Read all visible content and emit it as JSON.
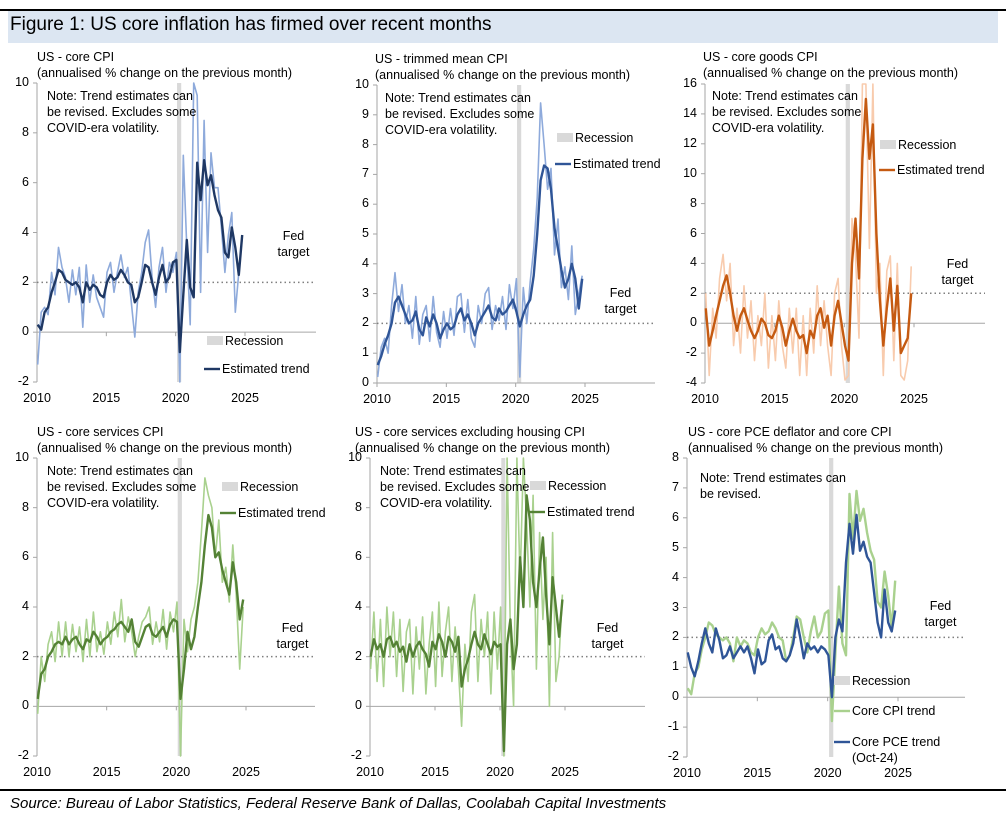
{
  "figure_title": "Figure 1: US core inflation has firmed over recent months",
  "source": "Source: Bureau of Labor Statistics, Federal Reserve Bank of Dallas, Coolabah Capital Investments",
  "colors": {
    "blue_raw": "#8eaadb",
    "blue_trend": "#1f3864",
    "trim_trend": "#2f5597",
    "orange_raw": "#f8cbad",
    "orange_trend": "#c55a11",
    "green_raw": "#a9d18e",
    "green_trend": "#548235",
    "pce_blue": "#2f5597",
    "recession": "#d9d9d9",
    "target": "#7f7f7f"
  },
  "chart_data": [
    {
      "type": "line",
      "title": "US - core CPI",
      "subtitle": "(annualised % change on the previous month)",
      "note": "Note: Trend estimates can be revised. Excludes some COVID-era volatility.",
      "ylim": [
        -2,
        10
      ],
      "yticks": [
        -2,
        0,
        2,
        4,
        6,
        8,
        10
      ],
      "xticks": [
        2010,
        2015,
        2020,
        2025
      ],
      "target": 2,
      "target_label": "Fed target",
      "recession": [
        2020.1,
        2020.4
      ],
      "legend": {
        "recession": "Recession",
        "entries": [
          "Estimated trend"
        ]
      },
      "start": "2010-Q1",
      "frequency": "quarterly",
      "series": [
        {
          "role": "raw",
          "color": "#8eaadb",
          "values": [
            -1.3,
            0.8,
            1.0,
            0.7,
            2.4,
            1.5,
            3.4,
            2.6,
            2.2,
            1.2,
            2.5,
            1.5,
            2.6,
            0.2,
            2.7,
            1.2,
            2.3,
            1.4,
            1.0,
            0.6,
            2.4,
            2.8,
            1.6,
            2.4,
            3.1,
            2.2,
            2.6,
            1.2,
            -0.2,
            1.6,
            2.4,
            3.6,
            4.1,
            2.2,
            1.0,
            2.6,
            3.4,
            1.6,
            2.8,
            2.4,
            3.2,
            -2.0,
            7.1,
            3.4,
            0.3,
            10.0,
            9.5,
            1.6,
            8.5,
            3.2,
            7.2,
            5.8,
            5.8,
            4.2,
            2.4,
            3.9,
            4.8,
            0.8,
            2.4,
            3.8
          ]
        },
        {
          "role": "trend",
          "name": "Estimated trend",
          "color": "#1f3864",
          "values": [
            0.3,
            0.1,
            0.8,
            1.0,
            1.6,
            2.0,
            2.5,
            2.4,
            2.1,
            2.0,
            1.9,
            2.0,
            1.8,
            1.2,
            2.0,
            1.7,
            1.9,
            1.8,
            1.5,
            1.4,
            2.0,
            2.3,
            2.1,
            2.2,
            2.5,
            2.3,
            2.0,
            1.9,
            1.2,
            1.4,
            2.0,
            2.7,
            2.6,
            2.0,
            1.5,
            2.2,
            2.7,
            2.0,
            2.2,
            2.8,
            2.9,
            -0.8,
            1.5,
            3.7,
            1.8,
            1.4,
            6.8,
            5.3,
            6.9,
            5.9,
            6.3,
            5.5,
            4.9,
            4.6,
            3.2,
            3.0,
            4.2,
            3.4,
            2.3,
            3.9
          ]
        }
      ]
    },
    {
      "type": "line",
      "title": "US - trimmed mean CPI",
      "subtitle": "(annualised % change on the previous month)",
      "note": "Note: Trend estimates can be revised. Excludes some COVID-era volatility.",
      "ylim": [
        0,
        10
      ],
      "yticks": [
        0,
        1,
        2,
        3,
        4,
        5,
        6,
        7,
        8,
        9,
        10
      ],
      "xticks": [
        2010,
        2015,
        2020,
        2025
      ],
      "target": 2,
      "target_label": "Fed target",
      "recession": [
        2020.1,
        2020.4
      ],
      "legend": {
        "recession": "Recession",
        "entries": [
          "Estimated trend"
        ]
      },
      "start": "2010-Q1",
      "frequency": "quarterly",
      "series": [
        {
          "role": "raw",
          "color": "#8eaadb",
          "values": [
            0.2,
            1.2,
            1.5,
            1.0,
            2.6,
            3.7,
            2.4,
            3.3,
            2.0,
            2.6,
            1.5,
            2.9,
            1.3,
            2.3,
            2.6,
            1.4,
            2.9,
            1.7,
            1.2,
            2.4,
            1.5,
            2.5,
            1.6,
            2.9,
            3.0,
            1.7,
            2.8,
            1.5,
            1.2,
            2.6,
            2.0,
            3.0,
            3.2,
            1.8,
            2.6,
            2.1,
            2.9,
            1.8,
            3.3,
            2.5,
            3.5,
            0.2,
            3.2,
            2.0,
            3.4,
            4.5,
            6.2,
            9.4,
            8.0,
            6.5,
            7.2,
            4.3,
            5.5,
            3.2,
            3.9,
            2.8,
            4.6,
            2.3,
            3.0,
            3.6
          ]
        },
        {
          "role": "trend",
          "name": "Estimated trend",
          "color": "#2f5597",
          "values": [
            0.6,
            0.9,
            1.3,
            1.6,
            2.0,
            2.7,
            2.9,
            2.6,
            2.3,
            2.0,
            2.1,
            2.4,
            1.8,
            1.6,
            2.2,
            1.9,
            2.3,
            2.0,
            1.5,
            1.8,
            2.0,
            1.8,
            1.9,
            2.3,
            2.5,
            2.1,
            2.3,
            2.0,
            1.6,
            2.0,
            2.2,
            2.4,
            2.6,
            2.2,
            2.1,
            2.5,
            2.3,
            2.4,
            2.6,
            2.8,
            2.4,
            1.9,
            2.3,
            2.6,
            2.8,
            3.6,
            5.0,
            6.8,
            7.3,
            7.2,
            6.5,
            5.2,
            4.5,
            3.8,
            3.2,
            3.5,
            4.0,
            3.5,
            2.5,
            3.5
          ]
        }
      ]
    },
    {
      "type": "line",
      "title": "US - core goods CPI",
      "subtitle": "(annualised % change on the previous month)",
      "note": "Note: Trend estimates can be revised. Excludes some COVID-era volatility.",
      "ylim": [
        -4,
        16
      ],
      "yticks": [
        -4,
        -2,
        0,
        2,
        4,
        6,
        8,
        10,
        12,
        14,
        16
      ],
      "xticks": [
        2010,
        2015,
        2020,
        2025
      ],
      "target": 2,
      "target_label": "Fed target",
      "recession": [
        2020.1,
        2020.4
      ],
      "legend": {
        "recession": "Recession",
        "entries": [
          "Estimated trend"
        ]
      },
      "start": "2010-Q1",
      "frequency": "quarterly",
      "series": [
        {
          "role": "raw",
          "color": "#f8cbad",
          "values": [
            2.0,
            -3.5,
            1.0,
            -1.0,
            3.0,
            4.6,
            1.5,
            4.0,
            -1.5,
            1.0,
            -2.0,
            2.5,
            -1.0,
            1.5,
            -2.5,
            0.5,
            -1.5,
            2.0,
            -3.0,
            0.5,
            -2.5,
            1.5,
            -1.5,
            -3.0,
            1.0,
            -2.0,
            1.0,
            -3.5,
            0.5,
            -3.5,
            1.0,
            -2.0,
            2.5,
            -1.5,
            1.5,
            -1.5,
            -3.5,
            2.0,
            3.0,
            -1.5,
            -3.8,
            -3.5,
            7.0,
            4.5,
            -1.0,
            16.0,
            16.0,
            5.0,
            16.0,
            2.0,
            4.0,
            -3.5,
            3.5,
            4.5,
            -2.5,
            4.0,
            -3.5,
            -3.8,
            -2.5,
            3.8
          ]
        },
        {
          "role": "trend",
          "name": "Estimated trend",
          "color": "#c55a11",
          "values": [
            1.0,
            -1.5,
            -0.5,
            0.5,
            1.5,
            2.5,
            3.2,
            2.0,
            0.5,
            -0.5,
            0.5,
            1.0,
            0.2,
            -0.5,
            -1.0,
            -0.5,
            0.3,
            0.0,
            -0.8,
            -1.0,
            -0.5,
            0.5,
            -0.3,
            -1.5,
            -0.5,
            0.3,
            -0.5,
            -1.0,
            -0.8,
            -2.0,
            -0.5,
            -1.0,
            0.5,
            1.0,
            -0.3,
            0.5,
            -1.5,
            0.5,
            1.5,
            0.0,
            -1.5,
            -2.5,
            4.0,
            7.0,
            3.0,
            11.0,
            15.0,
            11.0,
            13.3,
            6.0,
            1.5,
            -1.5,
            1.0,
            3.0,
            -0.5,
            2.5,
            -2.0,
            -1.5,
            -1.0,
            2.0
          ]
        }
      ]
    },
    {
      "type": "line",
      "title": "US - core services CPI",
      "subtitle": "(annualised % change on the previous month)",
      "note": "Note: Trend estimates can be revised. Excludes some COVID-era volatility.",
      "ylim": [
        -2,
        10
      ],
      "yticks": [
        -2,
        0,
        2,
        4,
        6,
        8,
        10
      ],
      "xticks": [
        2010,
        2015,
        2020,
        2025
      ],
      "target": 2,
      "target_label": "Fed target",
      "recession": [
        2020.1,
        2020.4
      ],
      "legend": {
        "recession": "Recession",
        "entries": [
          "Estimated trend"
        ]
      },
      "start": "2010-Q1",
      "frequency": "quarterly",
      "series": [
        {
          "role": "raw",
          "color": "#a9d18e",
          "values": [
            -0.3,
            2.0,
            1.0,
            2.5,
            3.0,
            1.8,
            3.4,
            2.0,
            3.4,
            2.0,
            3.3,
            2.2,
            3.2,
            1.8,
            3.5,
            2.0,
            3.8,
            2.2,
            3.0,
            2.1,
            3.4,
            2.5,
            3.8,
            2.8,
            4.3,
            2.6,
            3.6,
            3.0,
            2.0,
            2.8,
            3.4,
            3.6,
            4.0,
            2.5,
            3.4,
            2.6,
            3.9,
            2.3,
            3.8,
            3.0,
            4.2,
            -2.0,
            3.5,
            2.2,
            3.5,
            4.0,
            5.0,
            7.0,
            9.2,
            8.5,
            8.0,
            6.0,
            7.5,
            5.0,
            5.6,
            4.2,
            6.5,
            4.5,
            1.5,
            4.0
          ]
        },
        {
          "role": "trend",
          "name": "Estimated trend",
          "color": "#548235",
          "values": [
            0.3,
            1.3,
            1.5,
            2.0,
            2.2,
            2.5,
            2.6,
            2.5,
            2.8,
            2.5,
            2.7,
            2.8,
            2.5,
            2.3,
            2.7,
            2.6,
            3.0,
            2.8,
            2.5,
            2.7,
            2.8,
            3.0,
            3.1,
            3.3,
            3.4,
            3.2,
            3.0,
            3.5,
            2.6,
            2.4,
            2.8,
            3.2,
            3.3,
            2.9,
            2.8,
            3.0,
            3.2,
            2.8,
            3.3,
            3.5,
            3.4,
            0.3,
            1.5,
            3.0,
            2.3,
            2.8,
            4.0,
            5.0,
            6.5,
            7.7,
            7.2,
            6.0,
            6.2,
            5.5,
            5.0,
            4.5,
            5.8,
            5.0,
            3.5,
            4.3
          ]
        }
      ]
    },
    {
      "type": "line",
      "title": "US - core services excluding housing CPI",
      "subtitle": "(annualised % change on the previous month)",
      "note": "Note: Trend estimates can be revised. Excludes some COVID-era volatility.",
      "ylim": [
        -2,
        10
      ],
      "yticks": [
        -2,
        0,
        2,
        4,
        6,
        8,
        10
      ],
      "xticks": [
        2010,
        2015,
        2020,
        2025
      ],
      "target": 2,
      "target_label": "Fed target",
      "recession": [
        2020.1,
        2020.4
      ],
      "legend": {
        "recession": "Recession",
        "entries": [
          "Estimated trend"
        ]
      },
      "start": "2010-Q1",
      "frequency": "quarterly",
      "series": [
        {
          "role": "raw",
          "color": "#a9d18e",
          "values": [
            1.5,
            3.8,
            1.0,
            3.5,
            0.8,
            4.0,
            2.0,
            3.8,
            1.2,
            3.5,
            0.6,
            3.0,
            3.5,
            0.5,
            3.2,
            1.5,
            3.6,
            0.5,
            2.5,
            3.8,
            0.8,
            4.2,
            1.2,
            3.0,
            4.0,
            1.0,
            3.2,
            1.5,
            -0.8,
            2.5,
            1.0,
            3.8,
            4.5,
            1.0,
            3.5,
            2.0,
            3.8,
            0.5,
            3.8,
            1.5,
            4.0,
            -2.0,
            10.0,
            3.0,
            0.0,
            10.0,
            5.0,
            10.0,
            7.5,
            4.0,
            8.5,
            1.5,
            7.0,
            3.5,
            6.0,
            0.0,
            7.0,
            1.0,
            2.0,
            4.5
          ]
        },
        {
          "role": "trend",
          "name": "Estimated trend",
          "color": "#548235",
          "values": [
            2.0,
            2.7,
            2.3,
            2.5,
            2.0,
            2.7,
            2.8,
            2.4,
            2.6,
            2.2,
            2.4,
            1.8,
            2.5,
            2.0,
            2.4,
            2.6,
            2.3,
            2.1,
            1.6,
            2.6,
            2.3,
            2.9,
            2.6,
            2.0,
            2.8,
            2.6,
            2.2,
            2.8,
            0.8,
            1.5,
            1.9,
            2.5,
            3.0,
            2.5,
            2.3,
            2.9,
            2.5,
            2.1,
            2.6,
            2.4,
            2.5,
            -1.8,
            2.5,
            3.5,
            1.5,
            2.5,
            6.0,
            4.0,
            8.5,
            7.5,
            5.0,
            4.0,
            5.5,
            6.8,
            4.5,
            2.5,
            5.2,
            4.0,
            2.8,
            4.3
          ]
        }
      ]
    },
    {
      "type": "line",
      "title": "US - core PCE deflator and core CPI",
      "subtitle": "(annualised % change on the previous month)",
      "note": "Note: Trend estimates can be revised.",
      "ylim": [
        -2,
        8
      ],
      "yticks": [
        -2,
        -1,
        0,
        1,
        2,
        3,
        4,
        5,
        6,
        7,
        8
      ],
      "xticks": [
        2010,
        2015,
        2020,
        2025
      ],
      "target": 2,
      "target_label": "Fed target",
      "recession": [
        2020.1,
        2020.4
      ],
      "legend": {
        "recession": "Recession",
        "entries": [
          "Core CPI trend",
          "Core PCE trend (Oct-24)"
        ]
      },
      "start": "2010-Q1",
      "frequency": "quarterly",
      "series": [
        {
          "role": "trend",
          "name": "Core CPI trend",
          "color": "#a9d18e",
          "values": [
            0.3,
            0.1,
            0.8,
            1.0,
            1.6,
            2.0,
            2.5,
            2.4,
            2.1,
            2.0,
            1.9,
            2.0,
            1.8,
            1.2,
            2.0,
            1.7,
            1.9,
            1.8,
            1.5,
            1.4,
            2.0,
            2.3,
            2.1,
            2.2,
            2.5,
            2.3,
            2.0,
            1.9,
            1.2,
            1.4,
            2.0,
            2.7,
            2.6,
            2.0,
            1.5,
            2.2,
            2.7,
            2.0,
            2.2,
            2.8,
            2.9,
            -0.8,
            1.5,
            3.7,
            1.8,
            1.4,
            6.8,
            5.3,
            6.9,
            5.9,
            6.3,
            5.5,
            4.9,
            4.6,
            3.2,
            3.0,
            4.2,
            3.4,
            2.3,
            3.9
          ]
        },
        {
          "role": "trend",
          "name": "Core PCE trend (Oct-24)",
          "color": "#2f5597",
          "values": [
            1.5,
            1.0,
            0.7,
            1.2,
            1.8,
            2.3,
            1.8,
            1.5,
            2.3,
            1.9,
            1.3,
            1.4,
            1.7,
            1.3,
            1.5,
            1.7,
            1.5,
            1.7,
            1.3,
            0.8,
            1.6,
            1.1,
            1.2,
            1.9,
            2.1,
            1.6,
            1.7,
            1.3,
            1.2,
            1.4,
            1.8,
            2.6,
            2.0,
            1.3,
            1.8,
            1.6,
            1.7,
            1.5,
            1.7,
            1.6,
            1.4,
            0.0,
            2.0,
            2.6,
            2.2,
            4.5,
            5.8,
            4.8,
            6.1,
            4.9,
            5.2,
            4.7,
            4.5,
            3.5,
            2.5,
            2.0,
            3.6,
            2.5,
            2.2,
            2.9
          ]
        }
      ]
    }
  ]
}
